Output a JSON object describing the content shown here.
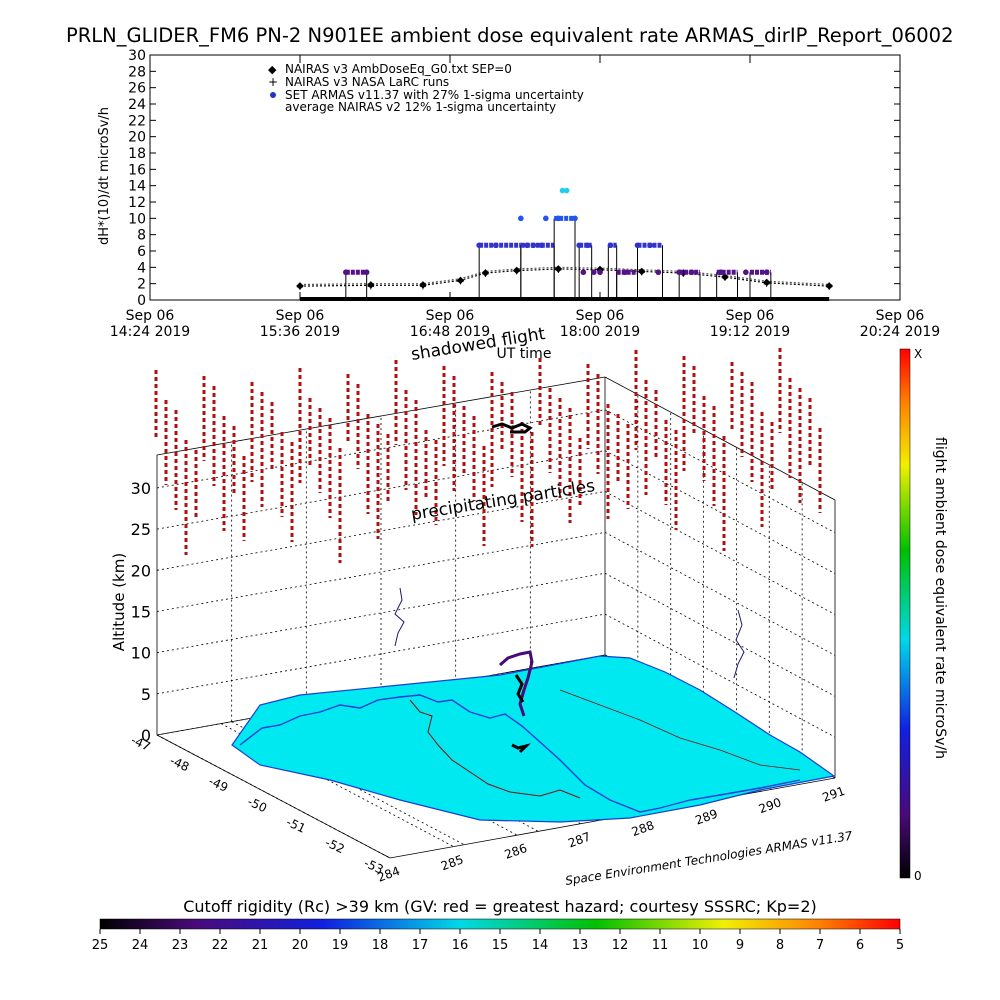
{
  "title": "PRLN_GLIDER_FM6 PN-2 N901EE ambient dose equivalent rate ARMAS_dirIP_Report_06002",
  "chart_data": [
    {
      "type": "line",
      "name": "dose-time-series",
      "ylabel": "dH*(10)/dt microSv/h",
      "xlabel": "UT time",
      "ylim": [
        0,
        30
      ],
      "yticks": [
        0,
        2,
        4,
        6,
        8,
        10,
        12,
        14,
        16,
        18,
        20,
        22,
        24,
        26,
        28,
        30
      ],
      "xlim_minutes": [
        864,
        1224
      ],
      "xticks": [
        {
          "m": 864,
          "l1": "Sep 06",
          "l2": "14:24 2019"
        },
        {
          "m": 936,
          "l1": "Sep 06",
          "l2": "15:36 2019"
        },
        {
          "m": 1008,
          "l1": "Sep 06",
          "l2": "16:48 2019"
        },
        {
          "m": 1080,
          "l1": "Sep 06",
          "l2": "18:00 2019"
        },
        {
          "m": 1152,
          "l1": "Sep 06",
          "l2": "19:12 2019"
        },
        {
          "m": 1224,
          "l1": "Sep 06",
          "l2": "20:24 2019"
        }
      ],
      "legend": [
        {
          "marker": "diamond",
          "color": "#555555",
          "label": "NAIRAS v3 AmbDoseEq_G0.txt SEP=0"
        },
        {
          "marker": "plus",
          "color": "#000000",
          "label": "NAIRAS v3 NASA LaRC runs"
        },
        {
          "marker": "dot",
          "color": "#2233cc",
          "label": "SET ARMAS v11.37 with 27% 1-sigma uncertainty"
        },
        {
          "marker": "none",
          "color": "#000000",
          "label": "average NAIRAS v2 12% 1-sigma uncertainty"
        }
      ],
      "annotation": "shadowed flight",
      "series": [
        {
          "role": "nairas-g0",
          "color": "#555555",
          "x": [
            936,
            970,
            995,
            1013,
            1025,
            1040,
            1060,
            1080,
            1100,
            1120,
            1140,
            1160,
            1190
          ],
          "y": [
            1.9,
            2.0,
            2.0,
            2.6,
            3.5,
            3.8,
            4.0,
            3.9,
            3.7,
            3.5,
            3.0,
            2.3,
            1.9
          ]
        },
        {
          "role": "nairas-larc",
          "color": "#000000",
          "x": [
            936,
            970,
            995,
            1013,
            1025,
            1040,
            1060,
            1080,
            1100,
            1120,
            1140,
            1160,
            1190
          ],
          "y": [
            1.7,
            1.8,
            1.8,
            2.4,
            3.3,
            3.6,
            3.8,
            3.7,
            3.5,
            3.3,
            2.8,
            2.1,
            1.7
          ]
        },
        {
          "role": "armas",
          "color": "#2233cc",
          "x": [
            958,
            968,
            1022,
            1030,
            1042,
            1045,
            1048,
            1052,
            1054,
            1060,
            1062,
            1064,
            1068,
            1070,
            1072,
            1074,
            1077,
            1080,
            1085,
            1092,
            1098,
            1104,
            1108,
            1118,
            1124,
            1138,
            1150,
            1160
          ],
          "y": [
            3.4,
            3.4,
            6.7,
            6.7,
            10.0,
            6.7,
            6.7,
            6.7,
            10.0,
            10.0,
            13.4,
            13.4,
            10.0,
            6.7,
            3.4,
            6.7,
            3.4,
            3.4,
            6.7,
            3.4,
            6.7,
            6.7,
            3.4,
            3.4,
            3.4,
            3.4,
            3.4,
            3.4
          ],
          "segments": [
            [
              958,
              968,
              3.4
            ],
            [
              1022,
              1042,
              6.7
            ],
            [
              1042,
              1058,
              6.7
            ],
            [
              1058,
              1068,
              10.0
            ],
            [
              1070,
              1076,
              6.7
            ],
            [
              1084,
              1088,
              6.7
            ],
            [
              1088,
              1098,
              3.4
            ],
            [
              1098,
              1110,
              6.7
            ],
            [
              1118,
              1128,
              3.4
            ],
            [
              1136,
              1146,
              3.4
            ],
            [
              1152,
              1162,
              3.4
            ]
          ]
        }
      ]
    },
    {
      "type": "scatter",
      "name": "3d-altitude-view",
      "zlabel": "Altitude (km)",
      "zticks": [
        0,
        5,
        10,
        15,
        20,
        25,
        30
      ],
      "lat_ticks": [
        "-47",
        "-48",
        "-49",
        "-50",
        "-51",
        "-52",
        "-53"
      ],
      "lon_ticks": [
        "284",
        "285",
        "286",
        "287",
        "288",
        "289",
        "290",
        "291"
      ],
      "annotation": "precipitating particles",
      "credit": "Space Environment Technologies ARMAS v11.37"
    },
    {
      "type": "heatmap",
      "name": "colorbars",
      "vertical": {
        "label": "flight ambient dose equivalent rate microSv/h",
        "top": "X",
        "bottom": "0"
      },
      "horizontal": {
        "label": "Cutoff rigidity (Rc) >39 km (GV: red = greatest hazard; courtesy SSSRC; Kp=2)",
        "ticks": [
          "25",
          "24",
          "23",
          "22",
          "21",
          "20",
          "19",
          "18",
          "17",
          "16",
          "15",
          "14",
          "13",
          "12",
          "11",
          "10",
          "9",
          "8",
          "7",
          "6",
          "5"
        ]
      }
    }
  ]
}
